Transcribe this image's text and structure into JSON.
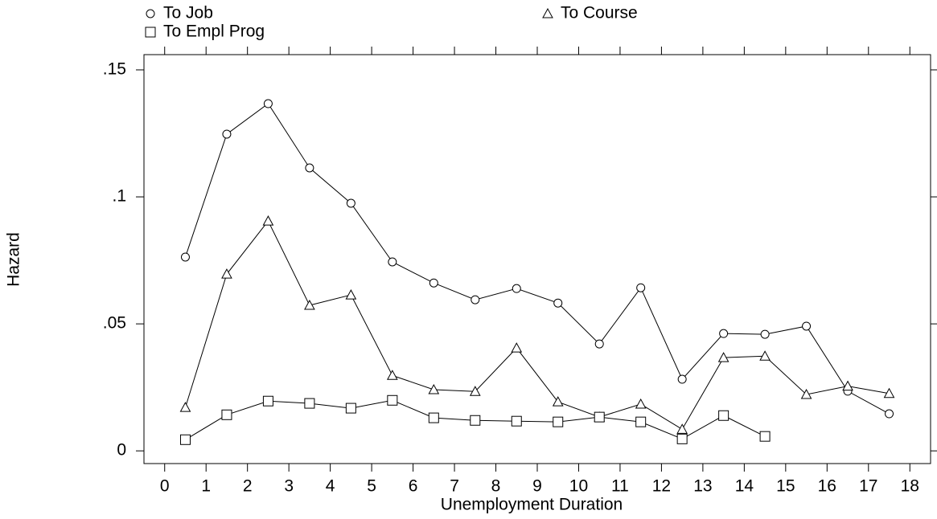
{
  "chart_data": {
    "type": "line",
    "xlabel": "Unemployment Duration",
    "ylabel": "Hazard",
    "x": [
      0.5,
      1.5,
      2.5,
      3.5,
      4.5,
      5.5,
      6.5,
      7.5,
      8.5,
      9.5,
      10.5,
      11.5,
      12.5,
      13.5,
      14.5,
      15.5,
      16.5,
      17.5
    ],
    "series": [
      {
        "name": "To Job",
        "color": "#000000",
        "marker": "circle",
        "values": [
          0.0763,
          0.1247,
          0.1367,
          0.1114,
          0.0975,
          0.0744,
          0.0661,
          0.0595,
          0.0639,
          0.0582,
          0.0421,
          0.0642,
          0.0282,
          0.0462,
          0.0459,
          0.0491,
          0.0235,
          0.0146
        ]
      },
      {
        "name": "To Course",
        "color": "#000000",
        "marker": "triangle",
        "values": [
          0.0171,
          0.0696,
          0.0905,
          0.0573,
          0.0614,
          0.0297,
          0.0241,
          0.0234,
          0.0405,
          0.0193,
          0.0133,
          0.0184,
          0.0085,
          0.0367,
          0.0373,
          0.0222,
          0.0255,
          0.0226
        ]
      },
      {
        "name": "To Empl Prog",
        "color": "#000000",
        "marker": "square",
        "values": [
          0.0044,
          0.0142,
          0.0196,
          0.0187,
          0.0168,
          0.0199,
          0.013,
          0.012,
          0.0117,
          0.0114,
          0.0133,
          0.0114,
          0.0047,
          0.0139,
          0.0057,
          null,
          null,
          null
        ]
      }
    ],
    "xlim": [
      -0.5,
      18.5
    ],
    "ylim": [
      -0.005,
      0.156
    ],
    "xticks": [
      0,
      1,
      2,
      3,
      4,
      5,
      6,
      7,
      8,
      9,
      10,
      11,
      12,
      13,
      14,
      15,
      16,
      17,
      18
    ],
    "yticks": [
      0,
      {
        "value": 0.05,
        "label": ".05"
      },
      {
        "value": 0.1,
        "label": ".1"
      },
      {
        "value": 0.15,
        "label": ".15"
      }
    ],
    "legend": "top"
  }
}
